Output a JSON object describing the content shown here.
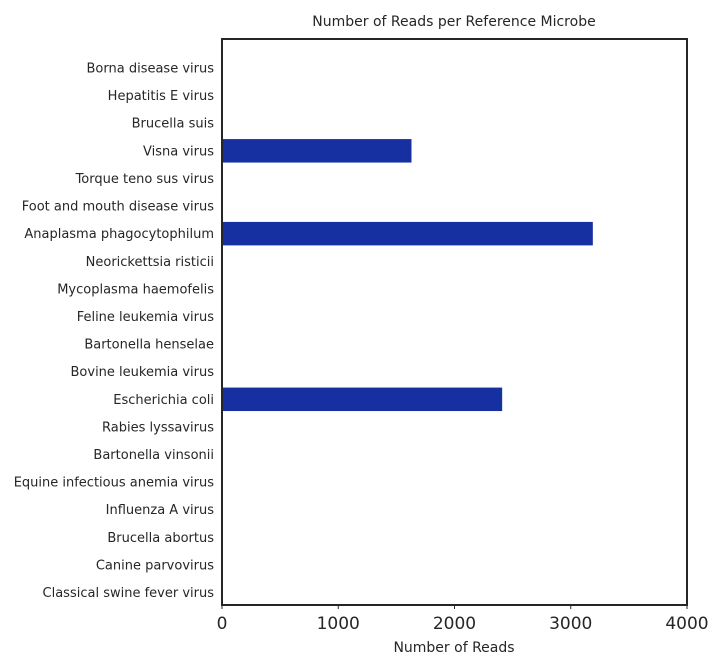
{
  "chart_data": {
    "type": "bar",
    "orientation": "horizontal",
    "title": "Number of Reads per Reference Microbe",
    "xlabel": "Number of Reads",
    "ylabel": "",
    "xlim": [
      0,
      4000
    ],
    "xticks": [
      0,
      1000,
      2000,
      3000,
      4000
    ],
    "grid": false,
    "bar_color": "#1730a1",
    "categories": [
      "Borna disease virus",
      "Hepatitis E virus",
      "Brucella suis",
      "Visna virus",
      "Torque teno sus virus",
      "Foot and mouth disease virus",
      "Anaplasma phagocytophilum",
      "Neorickettsia risticii",
      "Mycoplasma haemofelis",
      "Feline leukemia virus",
      "Bartonella henselae",
      "Bovine leukemia virus",
      "Escherichia coli",
      "Rabies lyssavirus",
      "Bartonella vinsonii",
      "Equine infectious anemia virus",
      "Influenza A virus",
      "Brucella abortus",
      "Canine parvovirus",
      "Classical swine fever virus"
    ],
    "values": [
      0,
      0,
      0,
      1630,
      0,
      0,
      3190,
      0,
      0,
      0,
      0,
      0,
      2410,
      0,
      0,
      0,
      0,
      0,
      0,
      0
    ]
  }
}
